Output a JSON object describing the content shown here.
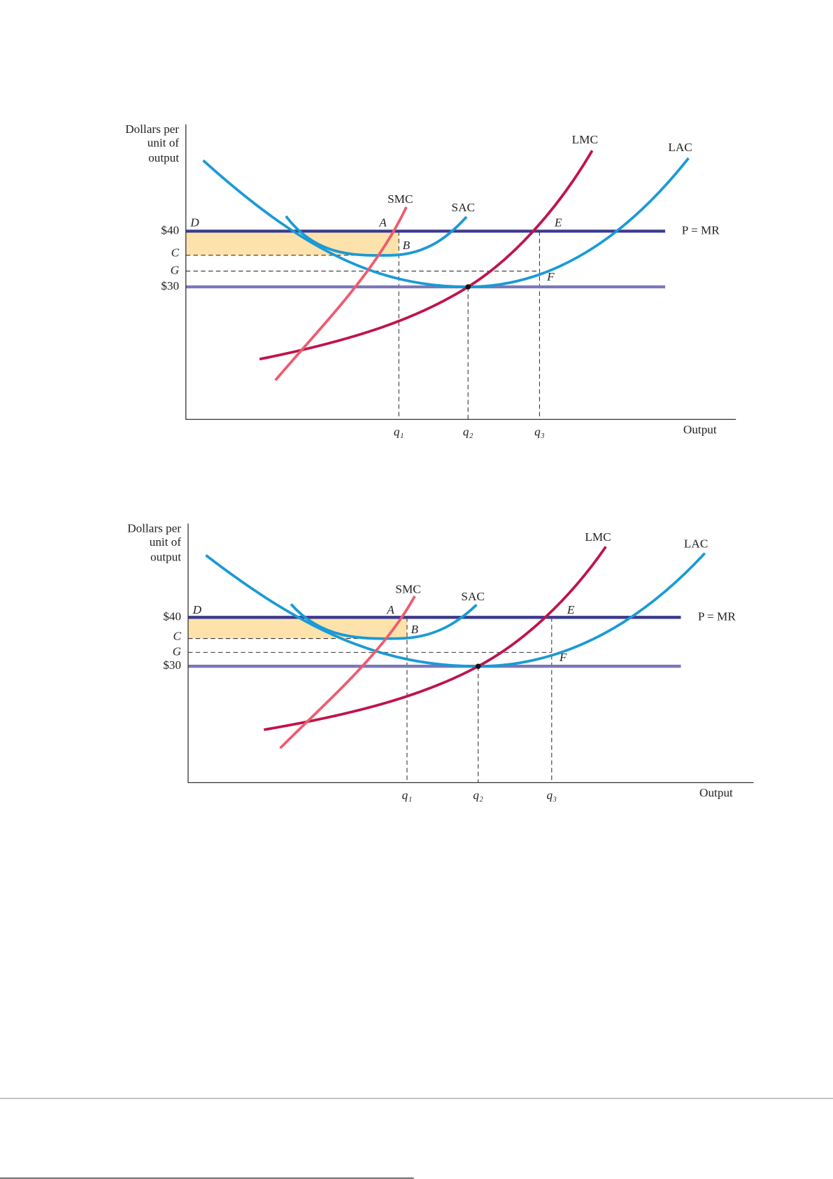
{
  "figures": [
    {
      "y_axis_label": [
        "Dollars per",
        "unit of",
        "output"
      ],
      "x_axis_label": "Output",
      "price_labels": [
        "$40",
        "C",
        "G",
        "$30"
      ],
      "point_labels": [
        "D",
        "A",
        "B",
        "E",
        "F"
      ],
      "curve_labels": [
        "SMC",
        "SAC",
        "LMC",
        "LAC"
      ],
      "price_line_label": "P = MR",
      "quantity_labels": [
        "q₁",
        "q₂",
        "q₃"
      ]
    },
    {
      "y_axis_label": [
        "Dollars per",
        "unit of",
        "output"
      ],
      "x_axis_label": "Output",
      "price_labels": [
        "$40",
        "C",
        "G",
        "$30"
      ],
      "point_labels": [
        "D",
        "A",
        "B",
        "E",
        "F"
      ],
      "curve_labels": [
        "SMC",
        "SAC",
        "LMC",
        "LAC"
      ],
      "price_line_label": "P = MR",
      "quantity_labels": [
        "q₁",
        "q₂",
        "q₃"
      ]
    }
  ]
}
